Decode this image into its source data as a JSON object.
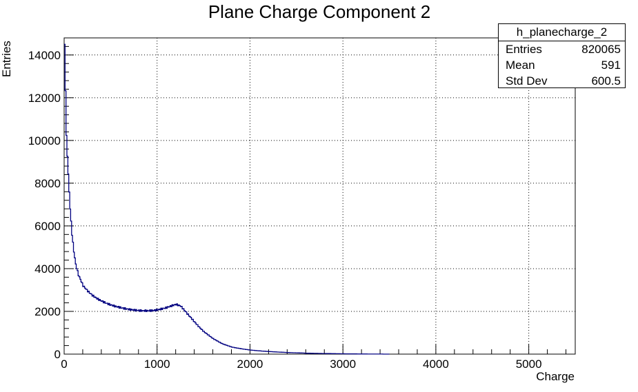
{
  "chart_data": {
    "type": "histogram",
    "title": "Plane Charge Component 2",
    "xlabel": "Charge",
    "ylabel": "Entries",
    "xlim": [
      0,
      5500
    ],
    "ylim": [
      0,
      14800
    ],
    "x_ticks": [
      0,
      1000,
      2000,
      3000,
      4000,
      5000
    ],
    "y_ticks": [
      0,
      2000,
      4000,
      6000,
      8000,
      10000,
      12000,
      14000
    ],
    "grid": true,
    "line_color": "#000080",
    "series": [
      {
        "x": [
          0,
          20,
          40,
          60,
          80,
          100,
          120,
          150,
          180,
          200,
          250,
          300,
          350,
          400,
          450,
          500,
          550,
          600,
          650,
          700,
          750,
          800,
          850,
          900,
          950,
          1000,
          1050,
          1100,
          1150,
          1200,
          1250,
          1300,
          1350,
          1400,
          1450,
          1500,
          1600,
          1700,
          1800,
          1900,
          2000,
          2100,
          2200,
          2300,
          2400,
          2500,
          2600,
          2700,
          2800,
          2900,
          3000,
          3100,
          3200,
          3300,
          3400,
          3500
        ],
        "y": [
          14500,
          10200,
          8400,
          6800,
          5600,
          4800,
          4200,
          3700,
          3400,
          3200,
          2950,
          2750,
          2600,
          2480,
          2380,
          2300,
          2230,
          2180,
          2130,
          2090,
          2060,
          2040,
          2030,
          2030,
          2040,
          2070,
          2120,
          2180,
          2260,
          2330,
          2250,
          2000,
          1750,
          1500,
          1260,
          1050,
          720,
          480,
          330,
          250,
          190,
          150,
          120,
          95,
          75,
          60,
          45,
          35,
          28,
          22,
          15,
          10,
          6,
          4,
          2,
          0
        ]
      }
    ],
    "stats": {
      "name": "h_planecharge_2",
      "entries_label": "Entries",
      "entries": "820065",
      "mean_label": "Mean",
      "mean": "591",
      "std_label": "Std Dev",
      "std": "600.5"
    }
  }
}
